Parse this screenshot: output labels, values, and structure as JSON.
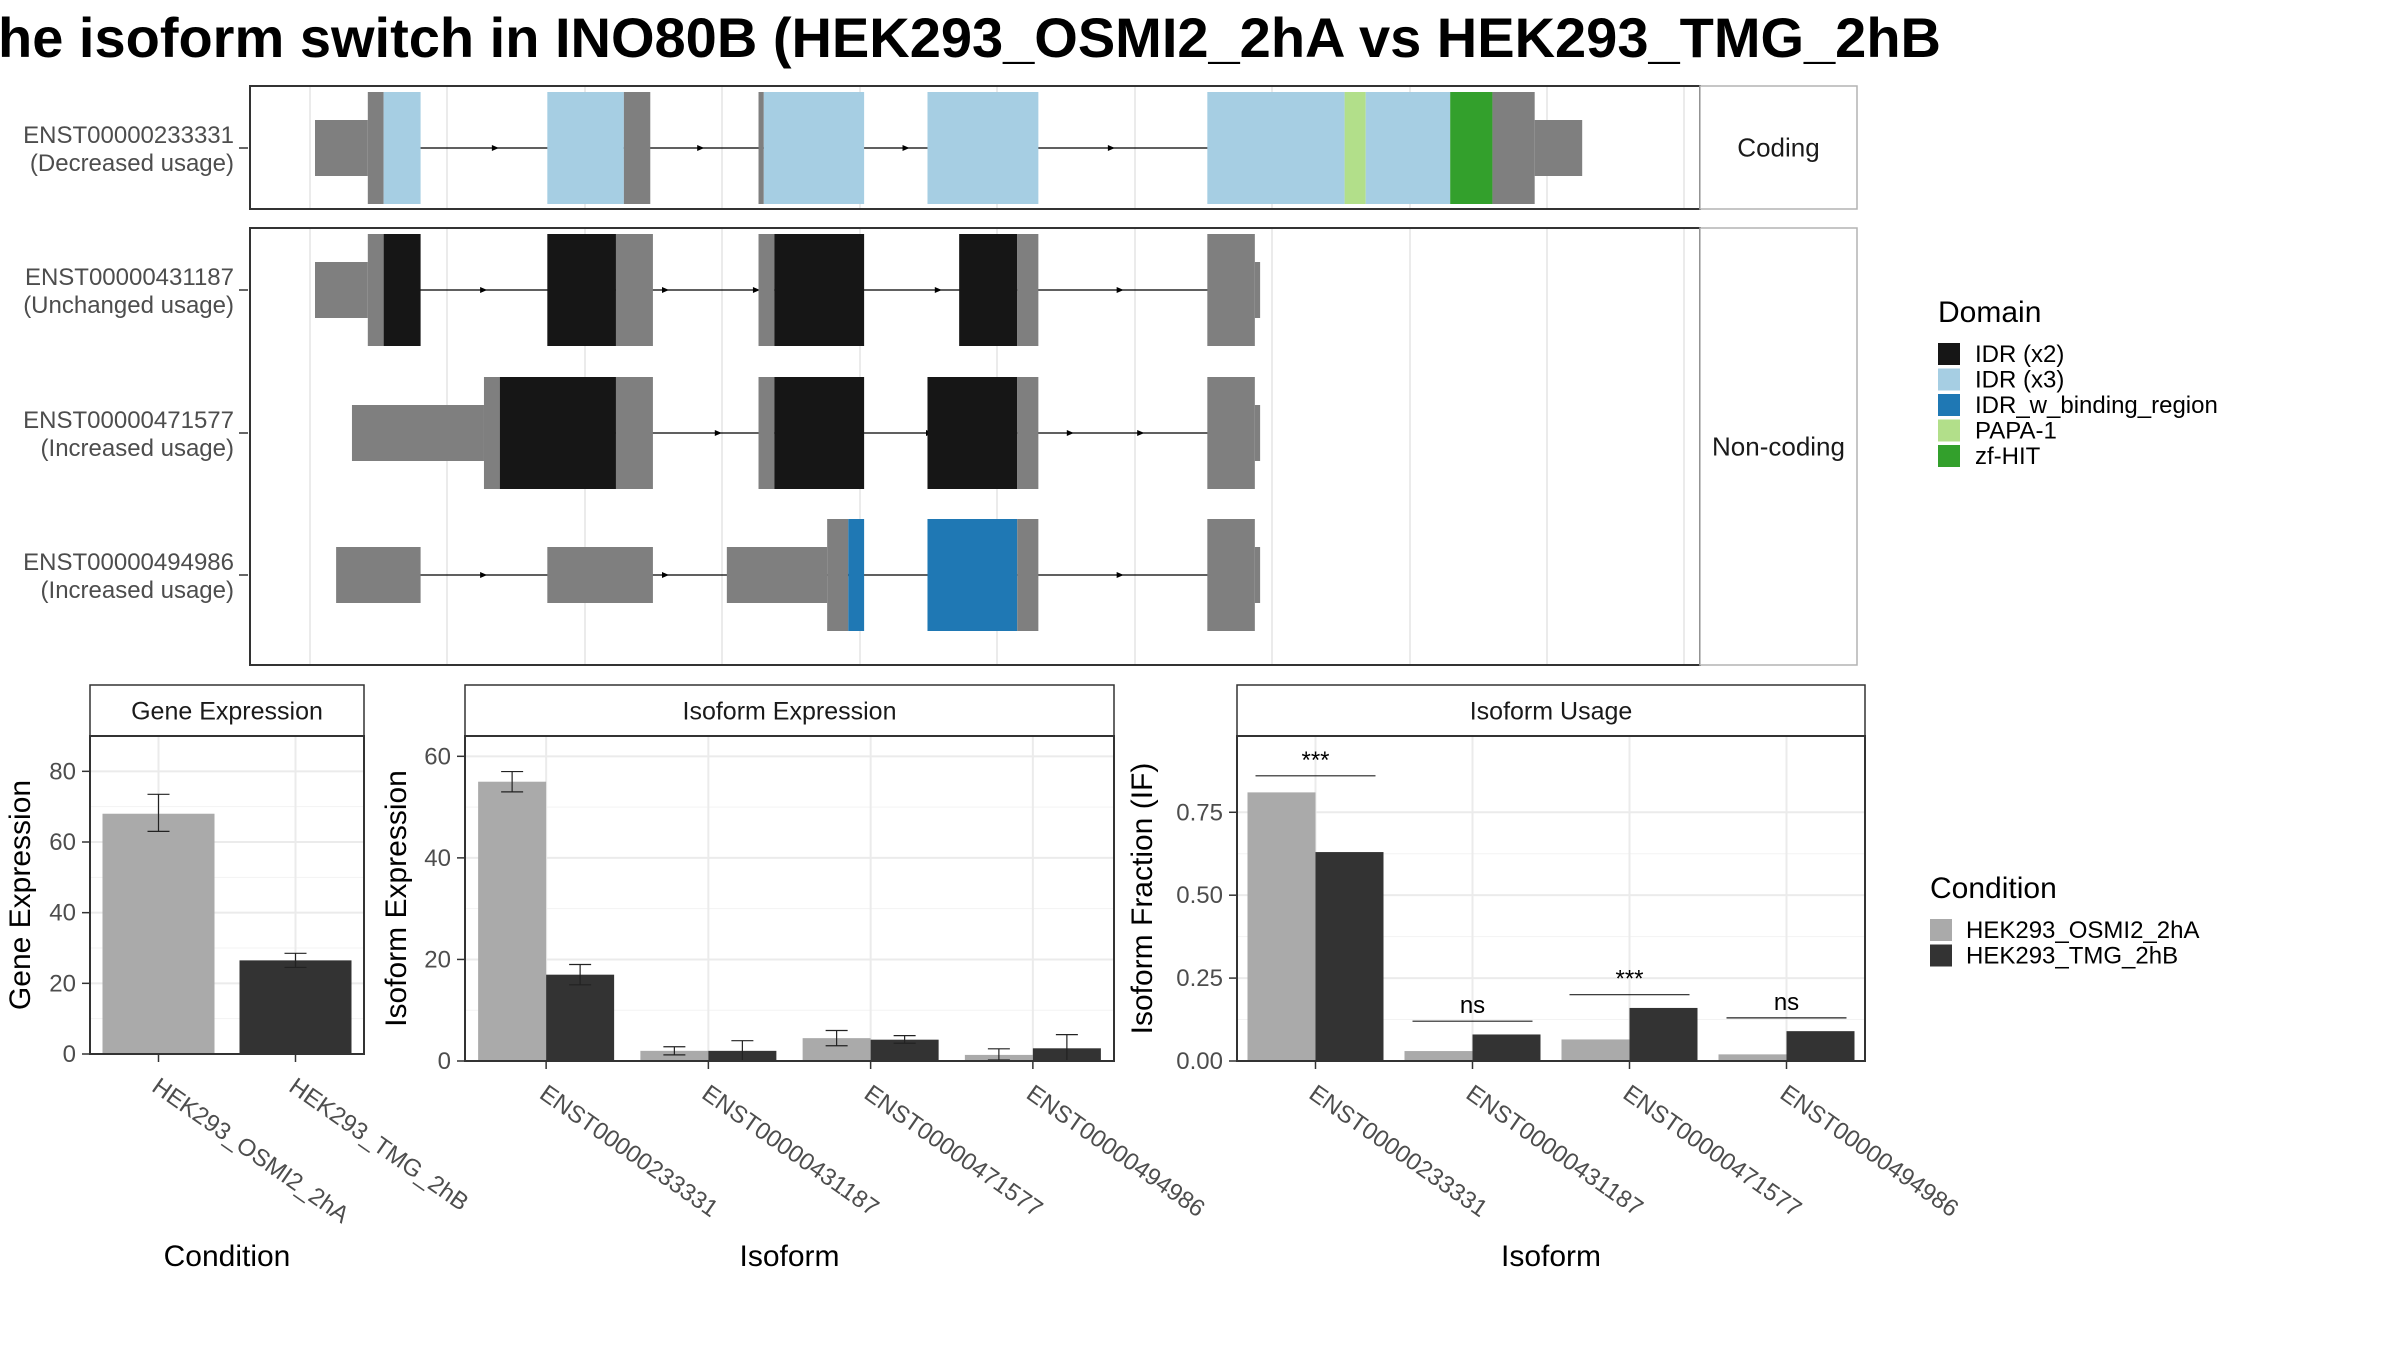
{
  "title": "he isoform switch in INO80B (HEK293_OSMI2_2hA vs HEK293_TMG_2hB",
  "colors": {
    "utr": "#7f7f7f",
    "idr_x2": "#161616",
    "idr_x3": "#a6cee3",
    "idr_w_binding_region": "#1f78b4",
    "papa1": "#b2df8a",
    "zf_hit": "#33a02c",
    "cond_a": "#aaaaaa",
    "cond_b": "#333333",
    "panel_border": "#333333",
    "strip_border": "#b3b3b3",
    "grid": "#ebebeb"
  },
  "structure": {
    "x_range": [
      0,
      100
    ],
    "facets": {
      "coding": "Coding",
      "noncoding": "Non-coding"
    },
    "transcripts": [
      {
        "id": "ENST00000233331",
        "usage": "(Decreased usage)",
        "group": "coding",
        "intron": [
          6,
          76
        ],
        "blocks": [
          {
            "start": 0,
            "end": 4,
            "kind": "utr"
          },
          {
            "start": 4,
            "end": 5.2,
            "kind": "cds"
          },
          {
            "start": 5.2,
            "end": 8,
            "kind": "idr_x3"
          },
          {
            "start": 17.6,
            "end": 23.4,
            "kind": "idr_x3"
          },
          {
            "start": 23.4,
            "end": 25.4,
            "kind": "cds"
          },
          {
            "start": 33.6,
            "end": 34,
            "kind": "cds"
          },
          {
            "start": 34,
            "end": 41.6,
            "kind": "idr_x3"
          },
          {
            "start": 46.4,
            "end": 54.8,
            "kind": "idr_x3"
          },
          {
            "start": 67.6,
            "end": 78,
            "kind": "idr_x3"
          },
          {
            "start": 78,
            "end": 79.6,
            "kind": "papa1"
          },
          {
            "start": 79.6,
            "end": 86,
            "kind": "idr_x3"
          },
          {
            "start": 86,
            "end": 89.2,
            "kind": "zf_hit"
          },
          {
            "start": 89.2,
            "end": 92.4,
            "kind": "cds"
          },
          {
            "start": 92.4,
            "end": 96,
            "kind": "utr"
          }
        ]
      },
      {
        "id": "ENST00000431187",
        "usage": "(Unchanged usage)",
        "group": "noncoding",
        "intron": [
          6,
          68
        ],
        "blocks": [
          {
            "start": 0,
            "end": 4,
            "kind": "utr"
          },
          {
            "start": 4,
            "end": 5.2,
            "kind": "cds"
          },
          {
            "start": 5.2,
            "end": 8,
            "kind": "idr_x2"
          },
          {
            "start": 17.6,
            "end": 22.8,
            "kind": "idr_x2"
          },
          {
            "start": 22.8,
            "end": 25.6,
            "kind": "cds"
          },
          {
            "start": 33.6,
            "end": 34.8,
            "kind": "cds"
          },
          {
            "start": 34.8,
            "end": 41.6,
            "kind": "idr_x2"
          },
          {
            "start": 48.8,
            "end": 53.2,
            "kind": "idr_x2"
          },
          {
            "start": 53.2,
            "end": 54.8,
            "kind": "cds"
          },
          {
            "start": 67.6,
            "end": 71.2,
            "kind": "cds"
          },
          {
            "start": 71.2,
            "end": 71.6,
            "kind": "utr"
          }
        ]
      },
      {
        "id": "ENST00000471577",
        "usage": "(Increased usage)",
        "group": "noncoding",
        "intron": [
          20,
          68
        ],
        "blocks": [
          {
            "start": 2.8,
            "end": 12.8,
            "kind": "utr"
          },
          {
            "start": 12.8,
            "end": 14,
            "kind": "cds"
          },
          {
            "start": 14,
            "end": 22.8,
            "kind": "idr_x2"
          },
          {
            "start": 22.8,
            "end": 25.6,
            "kind": "cds"
          },
          {
            "start": 33.6,
            "end": 34.8,
            "kind": "cds"
          },
          {
            "start": 34.8,
            "end": 41.6,
            "kind": "idr_x2"
          },
          {
            "start": 46.4,
            "end": 53.2,
            "kind": "idr_x2"
          },
          {
            "start": 53.2,
            "end": 54.8,
            "kind": "cds"
          },
          {
            "start": 67.6,
            "end": 71.2,
            "kind": "cds"
          },
          {
            "start": 71.2,
            "end": 71.6,
            "kind": "utr"
          }
        ]
      },
      {
        "id": "ENST00000494986",
        "usage": "(Increased usage)",
        "group": "noncoding",
        "intron": [
          6,
          68
        ],
        "blocks": [
          {
            "start": 1.6,
            "end": 8,
            "kind": "utr"
          },
          {
            "start": 17.6,
            "end": 25.6,
            "kind": "utr"
          },
          {
            "start": 31.2,
            "end": 38.8,
            "kind": "utr"
          },
          {
            "start": 38.8,
            "end": 40.4,
            "kind": "cds"
          },
          {
            "start": 40.4,
            "end": 41.6,
            "kind": "idr_w_binding_region"
          },
          {
            "start": 46.4,
            "end": 53.2,
            "kind": "idr_w_binding_region"
          },
          {
            "start": 53.2,
            "end": 54.8,
            "kind": "cds"
          },
          {
            "start": 67.6,
            "end": 71.2,
            "kind": "cds"
          },
          {
            "start": 71.2,
            "end": 71.6,
            "kind": "utr"
          }
        ]
      }
    ]
  },
  "legend_domain": {
    "title": "Domain",
    "items": [
      {
        "label": "IDR (x2)",
        "color": "#161616"
      },
      {
        "label": "IDR (x3)",
        "color": "#a6cee3"
      },
      {
        "label": "IDR_w_binding_region",
        "color": "#1f78b4"
      },
      {
        "label": "PAPA-1",
        "color": "#b2df8a"
      },
      {
        "label": "zf-HIT",
        "color": "#33a02c"
      }
    ]
  },
  "legend_condition": {
    "title": "Condition",
    "items": [
      {
        "label": "HEK293_OSMI2_2hA",
        "color": "#aaaaaa"
      },
      {
        "label": "HEK293_TMG_2hB",
        "color": "#333333"
      }
    ]
  },
  "chart_data": [
    {
      "type": "bar",
      "title": "Gene Expression",
      "xlabel": "Condition",
      "ylabel": "Gene Expression",
      "ylim": [
        0,
        90
      ],
      "yticks": [
        0,
        20,
        40,
        60,
        80
      ],
      "categories": [
        "HEK293_OSMI2_2hA",
        "HEK293_TMG_2hB"
      ],
      "values": [
        68,
        26.5
      ],
      "errors": [
        [
          63,
          73.5
        ],
        [
          24.5,
          28.5
        ]
      ],
      "grid": true
    },
    {
      "type": "bar",
      "title": "Isoform Expression",
      "xlabel": "Isoform",
      "ylabel": "Isoform Expression",
      "ylim": [
        0,
        64
      ],
      "yticks": [
        0,
        20,
        40,
        60
      ],
      "categories": [
        "ENST00000233331",
        "ENST00000431187",
        "ENST00000471577",
        "ENST00000494986"
      ],
      "series": [
        {
          "name": "HEK293_OSMI2_2hA",
          "values": [
            55,
            2,
            4.5,
            1.2
          ],
          "errors": [
            [
              53,
              57
            ],
            [
              1.2,
              2.8
            ],
            [
              3,
              6
            ],
            [
              0.2,
              2.4
            ]
          ]
        },
        {
          "name": "HEK293_TMG_2hB",
          "values": [
            17,
            2,
            4.2,
            2.5
          ],
          "errors": [
            [
              15,
              19
            ],
            [
              0,
              4
            ],
            [
              3.5,
              5
            ],
            [
              0,
              5.2
            ]
          ]
        }
      ],
      "grid": true
    },
    {
      "type": "bar",
      "title": "Isoform Usage",
      "xlabel": "Isoform",
      "ylabel": "Isoform Fraction (IF)",
      "ylim": [
        0,
        0.98
      ],
      "yticks": [
        "0.00",
        "0.25",
        "0.50",
        "0.75"
      ],
      "categories": [
        "ENST00000233331",
        "ENST00000431187",
        "ENST00000471577",
        "ENST00000494986"
      ],
      "series": [
        {
          "name": "HEK293_OSMI2_2hA",
          "values": [
            0.81,
            0.03,
            0.065,
            0.02
          ]
        },
        {
          "name": "HEK293_TMG_2hB",
          "values": [
            0.63,
            0.08,
            0.16,
            0.09
          ]
        }
      ],
      "significance": [
        {
          "label": "***",
          "y": 0.86
        },
        {
          "label": "ns",
          "y": 0.12
        },
        {
          "label": "***",
          "y": 0.2
        },
        {
          "label": "ns",
          "y": 0.13
        }
      ],
      "grid": true
    }
  ]
}
